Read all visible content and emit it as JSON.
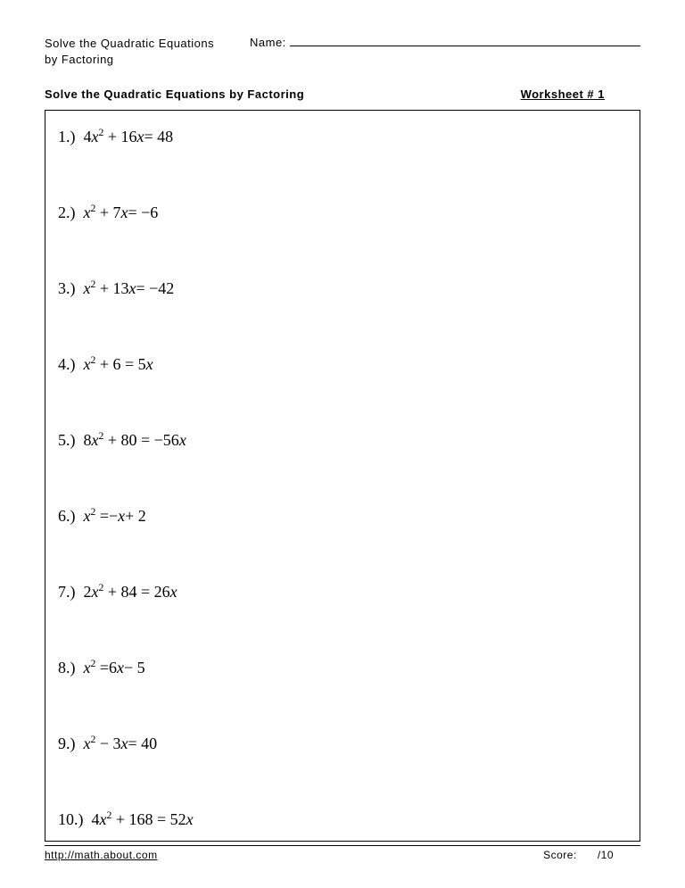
{
  "header": {
    "title_line1": "Solve the Quadratic Equations",
    "title_line2": "by Factoring",
    "name_label": "Name:"
  },
  "subheader": {
    "left": "Solve the Quadratic Equations by Factoring",
    "right": "Worksheet # 1"
  },
  "problems": [
    {
      "num": "1.)",
      "html": "4<span class='var'>x</span><sup>2</sup> + 16<span class='var'>x</span>= 48"
    },
    {
      "num": "2.)",
      "html": "<span class='var'>x</span><sup>2</sup> + 7<span class='var'>x</span>= −6"
    },
    {
      "num": "3.)",
      "html": "<span class='var'>x</span><sup>2</sup> + 13<span class='var'>x</span>= −42"
    },
    {
      "num": "4.)",
      "html": "<span class='var'>x</span><sup>2</sup> + 6 = 5<span class='var'>x</span>"
    },
    {
      "num": "5.)",
      "html": "8<span class='var'>x</span><sup>2</sup> + 80 = −56<span class='var'>x</span>"
    },
    {
      "num": "6.)",
      "html": "<span class='var'>x</span><sup>2</sup> =−<span class='var'>x</span>+ 2"
    },
    {
      "num": "7.)",
      "html": "2<span class='var'>x</span><sup>2</sup> + 84 = 26<span class='var'>x</span>"
    },
    {
      "num": "8.)",
      "html": "<span class='var'>x</span><sup>2</sup> =6<span class='var'>x</span>− 5"
    },
    {
      "num": "9.)",
      "html": "<span class='var'>x</span><sup>2</sup> − 3<span class='var'>x</span>= 40"
    },
    {
      "num": "10.)",
      "html": "4<span class='var'>x</span><sup>2</sup> + 168 = 52<span class='var'>x</span>"
    }
  ],
  "footer": {
    "link": "http://math.about.com",
    "score_label": "Score:",
    "score_total": "/10"
  },
  "style": {
    "page_bg": "#ffffff",
    "text_color": "#000000",
    "border_color": "#000000",
    "header_fontsize": 13,
    "problem_fontsize": 18,
    "footer_fontsize": 12
  }
}
